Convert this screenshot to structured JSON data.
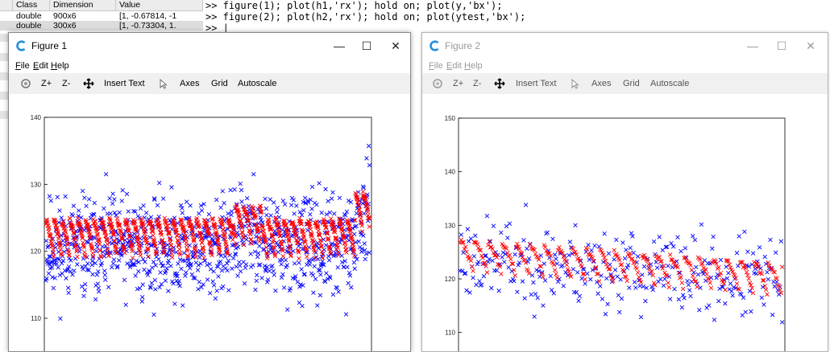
{
  "workspace": {
    "headers": [
      "",
      "Class",
      "Dimension",
      "Value"
    ],
    "rows": [
      {
        "class": "double",
        "dimension": "900x6",
        "value": "[1, -0.67814, -1"
      },
      {
        "class": "double",
        "dimension": "300x6",
        "value": "[1, -0.73304, 1."
      }
    ]
  },
  "command": {
    "lines": [
      ">> figure(1); plot(h1,'rx'); hold on; plot(y,'bx');",
      ">> figure(2); plot(h2,'rx'); hold on; plot(ytest,'bx');",
      ">> |"
    ]
  },
  "colors": {
    "red_series": "#ff0000",
    "blue_series": "#0000ff",
    "app_icon": "#1f8fe0"
  },
  "icons": [
    "octave-logo-icon",
    "minimize-icon",
    "maximize-icon",
    "close-icon",
    "rotate-icon",
    "pan-icon",
    "select-arrow-icon"
  ],
  "figures": [
    {
      "title": "Figure 1",
      "menus": [
        "File",
        "Edit",
        "Help"
      ],
      "toolbar": [
        "Z+",
        "Z-",
        "Insert Text",
        "Axes",
        "Grid",
        "Autoscale"
      ],
      "window_buttons": [
        "—",
        "☐",
        "✕"
      ]
    },
    {
      "title": "Figure 2",
      "menus": [
        "File",
        "Edit",
        "Help"
      ],
      "toolbar": [
        "Z+",
        "Z-",
        "Insert Text",
        "Axes",
        "Grid",
        "Autoscale"
      ],
      "window_buttons": [
        "—",
        "☐",
        "✕"
      ]
    }
  ],
  "chart_data": [
    {
      "type": "scatter",
      "ylim": [
        104,
        140
      ],
      "xlim": [
        0,
        900
      ],
      "yticks": [
        110,
        120,
        130,
        140
      ],
      "series": [
        {
          "color": "#0000ff",
          "marker": "x",
          "n": 900,
          "cycle": 22,
          "center": 120.5,
          "spread": 5.5,
          "seed": 11,
          "segments": [
            [
              0,
              520,
              0
            ],
            [
              520,
              600,
              2
            ],
            [
              600,
              860,
              0
            ],
            [
              860,
              900,
              4
            ]
          ]
        },
        {
          "color": "#ff0000",
          "marker": "x",
          "n": 900,
          "cycle": 22,
          "top": 124.5,
          "drop": 5.5,
          "seed": 5,
          "segments": [
            [
              0,
              520,
              0
            ],
            [
              520,
              600,
              2
            ],
            [
              600,
              860,
              0
            ],
            [
              860,
              900,
              4
            ]
          ]
        }
      ]
    },
    {
      "type": "scatter",
      "ylim": [
        105,
        150
      ],
      "xlim": [
        0,
        300
      ],
      "yticks": [
        110,
        120,
        130,
        140,
        150
      ],
      "series": [
        {
          "color": "#0000ff",
          "marker": "x",
          "n": 300,
          "cycle": 13,
          "center": 124,
          "spread": 5.5,
          "seed": 23,
          "trend": -0.015
        },
        {
          "color": "#ff0000",
          "marker": "x",
          "n": 300,
          "cycle": 13,
          "top": 127,
          "drop": 6,
          "seed": 7,
          "trend": -0.015
        }
      ]
    }
  ]
}
